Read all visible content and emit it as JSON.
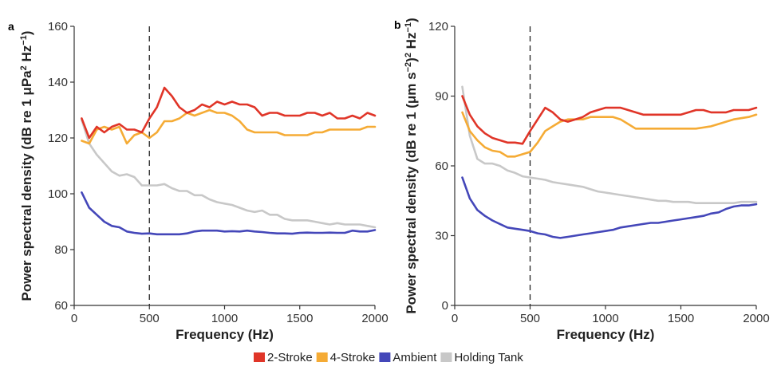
{
  "chart_data": [
    {
      "panel_label": "a",
      "type": "line",
      "xlabel": "Frequency (Hz)",
      "ylabel": "Power spectral density (dB re 1 μPa² Hz⁻¹)",
      "ylabel_parts": [
        "Power spectral density (dB re 1 μPa",
        "2",
        " Hz",
        "−1",
        ")"
      ],
      "xlim": [
        0,
        2000
      ],
      "ylim": [
        60,
        160
      ],
      "xticks": [
        0,
        500,
        1000,
        1500,
        2000
      ],
      "yticks": [
        60,
        80,
        100,
        120,
        140,
        160
      ],
      "vline_x": 500,
      "x": [
        50,
        100,
        150,
        200,
        250,
        300,
        350,
        400,
        450,
        500,
        550,
        600,
        650,
        700,
        750,
        800,
        850,
        900,
        950,
        1000,
        1050,
        1100,
        1150,
        1200,
        1250,
        1300,
        1350,
        1400,
        1450,
        1500,
        1550,
        1600,
        1650,
        1700,
        1750,
        1800,
        1850,
        1900,
        1950,
        2000
      ],
      "series": [
        {
          "name": "2-Stroke",
          "values": [
            127,
            120,
            124,
            122,
            124,
            125,
            123,
            123,
            122,
            127,
            131,
            138,
            135,
            131,
            129,
            130,
            132,
            131,
            133,
            132,
            133,
            132,
            132,
            131,
            128,
            129,
            129,
            128,
            128,
            128,
            129,
            129,
            128,
            129,
            127,
            127,
            128,
            127,
            129,
            128
          ]
        },
        {
          "name": "4-Stroke",
          "values": [
            119,
            118,
            123,
            124,
            123,
            124,
            118,
            121,
            122,
            120,
            122,
            126,
            126,
            127,
            129,
            128,
            129,
            130,
            129,
            129,
            128,
            126,
            123,
            122,
            122,
            122,
            122,
            121,
            121,
            121,
            121,
            122,
            122,
            123,
            123,
            123,
            123,
            123,
            124,
            124
          ]
        },
        {
          "name": "Ambient",
          "values": [
            100.5,
            95,
            92.5,
            90,
            88.5,
            88,
            86.5,
            86,
            85.7,
            85.8,
            85.5,
            85.5,
            85.5,
            85.5,
            85.8,
            86.5,
            86.8,
            86.8,
            86.8,
            86.5,
            86.6,
            86.5,
            86.8,
            86.5,
            86.3,
            86,
            85.8,
            85.8,
            85.7,
            86,
            86.1,
            86,
            86,
            86.1,
            86,
            86,
            86.8,
            86.5,
            86.5,
            87
          ]
        },
        {
          "name": "Holding Tank",
          "values": [
            126.5,
            118,
            114,
            111,
            108,
            106.5,
            107,
            106,
            103,
            103,
            103,
            103.5,
            102,
            101,
            101,
            99.5,
            99.5,
            98,
            97,
            96.5,
            96,
            95,
            94,
            93.5,
            94,
            92.5,
            92.5,
            91,
            90.5,
            90.5,
            90.5,
            90,
            89.5,
            89,
            89.5,
            89,
            89,
            89,
            88.5,
            88
          ]
        }
      ]
    },
    {
      "panel_label": "b",
      "type": "line",
      "xlabel": "Frequency (Hz)",
      "ylabel": "Power spectral density (dB re 1 (μm s⁻²)² Hz⁻¹)",
      "ylabel_parts": [
        "Power spectral density (dB re 1 (μm s",
        "−2",
        ")",
        "2",
        " Hz",
        "−1",
        ")"
      ],
      "xlim": [
        0,
        2000
      ],
      "ylim": [
        0,
        120
      ],
      "xticks": [
        0,
        500,
        1000,
        1500,
        2000
      ],
      "yticks": [
        0,
        30,
        60,
        90,
        120
      ],
      "vline_x": 500,
      "x": [
        50,
        100,
        150,
        200,
        250,
        300,
        350,
        400,
        450,
        500,
        550,
        600,
        650,
        700,
        750,
        800,
        850,
        900,
        950,
        1000,
        1050,
        1100,
        1150,
        1200,
        1250,
        1300,
        1350,
        1400,
        1450,
        1500,
        1550,
        1600,
        1650,
        1700,
        1750,
        1800,
        1850,
        1900,
        1950,
        2000
      ],
      "series": [
        {
          "name": "2-Stroke",
          "values": [
            90,
            82,
            77,
            74,
            72,
            71,
            70,
            70,
            69.5,
            75,
            80,
            85,
            83,
            80,
            79,
            80,
            81,
            83,
            84,
            85,
            85,
            85,
            84,
            83,
            82,
            82,
            82,
            82,
            82,
            82,
            83,
            84,
            84,
            83,
            83,
            83,
            84,
            84,
            84,
            85
          ]
        },
        {
          "name": "4-Stroke",
          "values": [
            83,
            75,
            71,
            68,
            66.5,
            66,
            64,
            64,
            65,
            66,
            70,
            75,
            77,
            79,
            80,
            80,
            80,
            81,
            81,
            81,
            81,
            80,
            78,
            76,
            76,
            76,
            76,
            76,
            76,
            76,
            76,
            76,
            76.5,
            77,
            78,
            79,
            80,
            80.5,
            81,
            82
          ]
        },
        {
          "name": "Ambient",
          "values": [
            55,
            46,
            41,
            38.5,
            36.5,
            35,
            33.5,
            33,
            32.5,
            32,
            31,
            30.5,
            29.5,
            29,
            29.5,
            30,
            30.5,
            31,
            31.5,
            32,
            32.5,
            33.5,
            34,
            34.5,
            35,
            35.5,
            35.5,
            36,
            36.5,
            37,
            37.5,
            38,
            38.5,
            39.5,
            40,
            41.5,
            42.5,
            43,
            43,
            43.5
          ]
        },
        {
          "name": "Holding Tank",
          "values": [
            94,
            73,
            63,
            61,
            61,
            60,
            58,
            57,
            55.5,
            55,
            54.5,
            54,
            53,
            52.5,
            52,
            51.5,
            51,
            50,
            49,
            48.5,
            48,
            47.5,
            47,
            46.5,
            46,
            45.5,
            45,
            45,
            44.5,
            44.5,
            44.5,
            44,
            44,
            44,
            44,
            44,
            44,
            44.5,
            44.5,
            44.5
          ]
        }
      ]
    }
  ],
  "colors": {
    "2-Stroke": "#e03528",
    "4-Stroke": "#f5ab35",
    "Ambient": "#4447b9",
    "Holding Tank": "#c8c8c8"
  },
  "legend": {
    "placement": "bottom-center",
    "items": [
      {
        "name": "2-Stroke",
        "color": "#e03528"
      },
      {
        "name": "4-Stroke",
        "color": "#f5ab35"
      },
      {
        "name": "Ambient",
        "color": "#4447b9"
      },
      {
        "name": "Holding Tank",
        "color": "#c8c8c8"
      }
    ]
  }
}
